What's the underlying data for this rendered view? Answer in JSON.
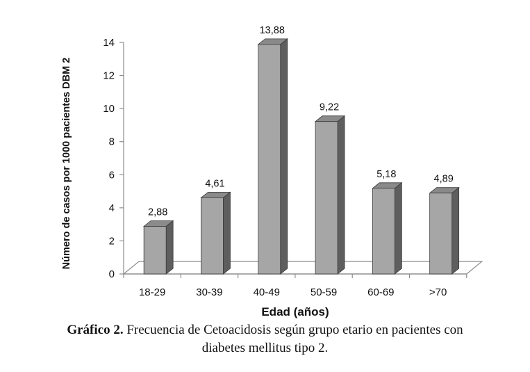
{
  "chart_data": {
    "type": "bar",
    "categories": [
      "18-29",
      "30-39",
      "40-49",
      "50-59",
      "60-69",
      ">70"
    ],
    "values": [
      2.88,
      4.61,
      13.88,
      9.22,
      5.18,
      4.89
    ],
    "data_labels": [
      "2,88",
      "4,61",
      "13,88",
      "9,22",
      "5,18",
      "4,89"
    ],
    "xlabel": "Edad (años)",
    "ylabel": "Número de casos por 1000 pacientes DBM 2",
    "ylim": [
      0,
      14
    ],
    "yticks": [
      "0",
      "2",
      "4",
      "6",
      "8",
      "10",
      "12",
      "14"
    ],
    "grid": false,
    "bar_color": "#a6a6a6"
  },
  "caption": {
    "bold": "Gráfico 2.",
    "text": " Frecuencia de Cetoacidosis según grupo etario en pacientes con",
    "line2": "diabetes mellitus tipo 2."
  }
}
